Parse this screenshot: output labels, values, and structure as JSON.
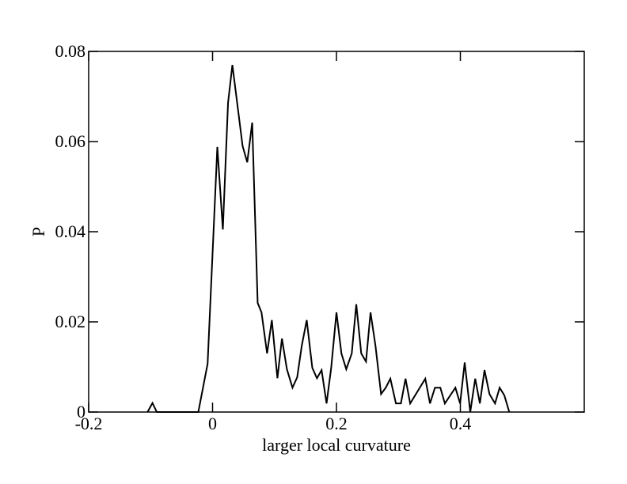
{
  "chart_data": {
    "type": "line",
    "x_label": "larger local curvature",
    "y_label": "P",
    "xlim": [
      -0.2,
      0.6
    ],
    "xticks": [
      -0.2,
      0,
      0.2,
      0.4
    ],
    "ylim": [
      0,
      0.08
    ],
    "yticks": [
      0,
      0.02,
      0.04,
      0.06,
      0.08
    ],
    "series": [
      {
        "color": "#000000",
        "x": [
          -0.105,
          -0.097,
          -0.09,
          -0.023,
          -0.008,
          0.0077,
          0.0166,
          0.025,
          0.032,
          0.0485,
          0.056,
          0.064,
          0.0728,
          0.079,
          0.088,
          0.0957,
          0.1047,
          0.112,
          0.12,
          0.129,
          0.1366,
          0.144,
          0.152,
          0.161,
          0.1685,
          0.176,
          0.184,
          0.1915,
          0.2,
          0.208,
          0.2158,
          0.2247,
          0.232,
          0.24,
          0.2477,
          0.255,
          0.263,
          0.272,
          0.2796,
          0.287,
          0.296,
          0.304,
          0.3115,
          0.319,
          0.3434,
          0.351,
          0.359,
          0.3677,
          0.375,
          0.392,
          0.3996,
          0.407,
          0.416,
          0.424,
          0.4315,
          0.439,
          0.447,
          0.456,
          0.4634,
          0.471,
          0.479
        ],
        "values": [
          0,
          0.002,
          0,
          0,
          0.0107,
          0.0588,
          0.0405,
          0.0686,
          0.077,
          0.059,
          0.0554,
          0.0642,
          0.0242,
          0.0221,
          0.013,
          0.0204,
          0.0075,
          0.0163,
          0.0095,
          0.0054,
          0.0077,
          0.0147,
          0.0204,
          0.0098,
          0.0075,
          0.0093,
          0.0019,
          0.0098,
          0.0221,
          0.013,
          0.0095,
          0.013,
          0.0239,
          0.013,
          0.0112,
          0.0221,
          0.0147,
          0.004,
          0.0054,
          0.0074,
          0.0019,
          0.0019,
          0.0074,
          0.0019,
          0.0074,
          0.0019,
          0.0054,
          0.0054,
          0.0019,
          0.0054,
          0.0019,
          0.011,
          0,
          0.0074,
          0.0019,
          0.0093,
          0.004,
          0.0019,
          0.0054,
          0.0037,
          0
        ]
      }
    ]
  }
}
